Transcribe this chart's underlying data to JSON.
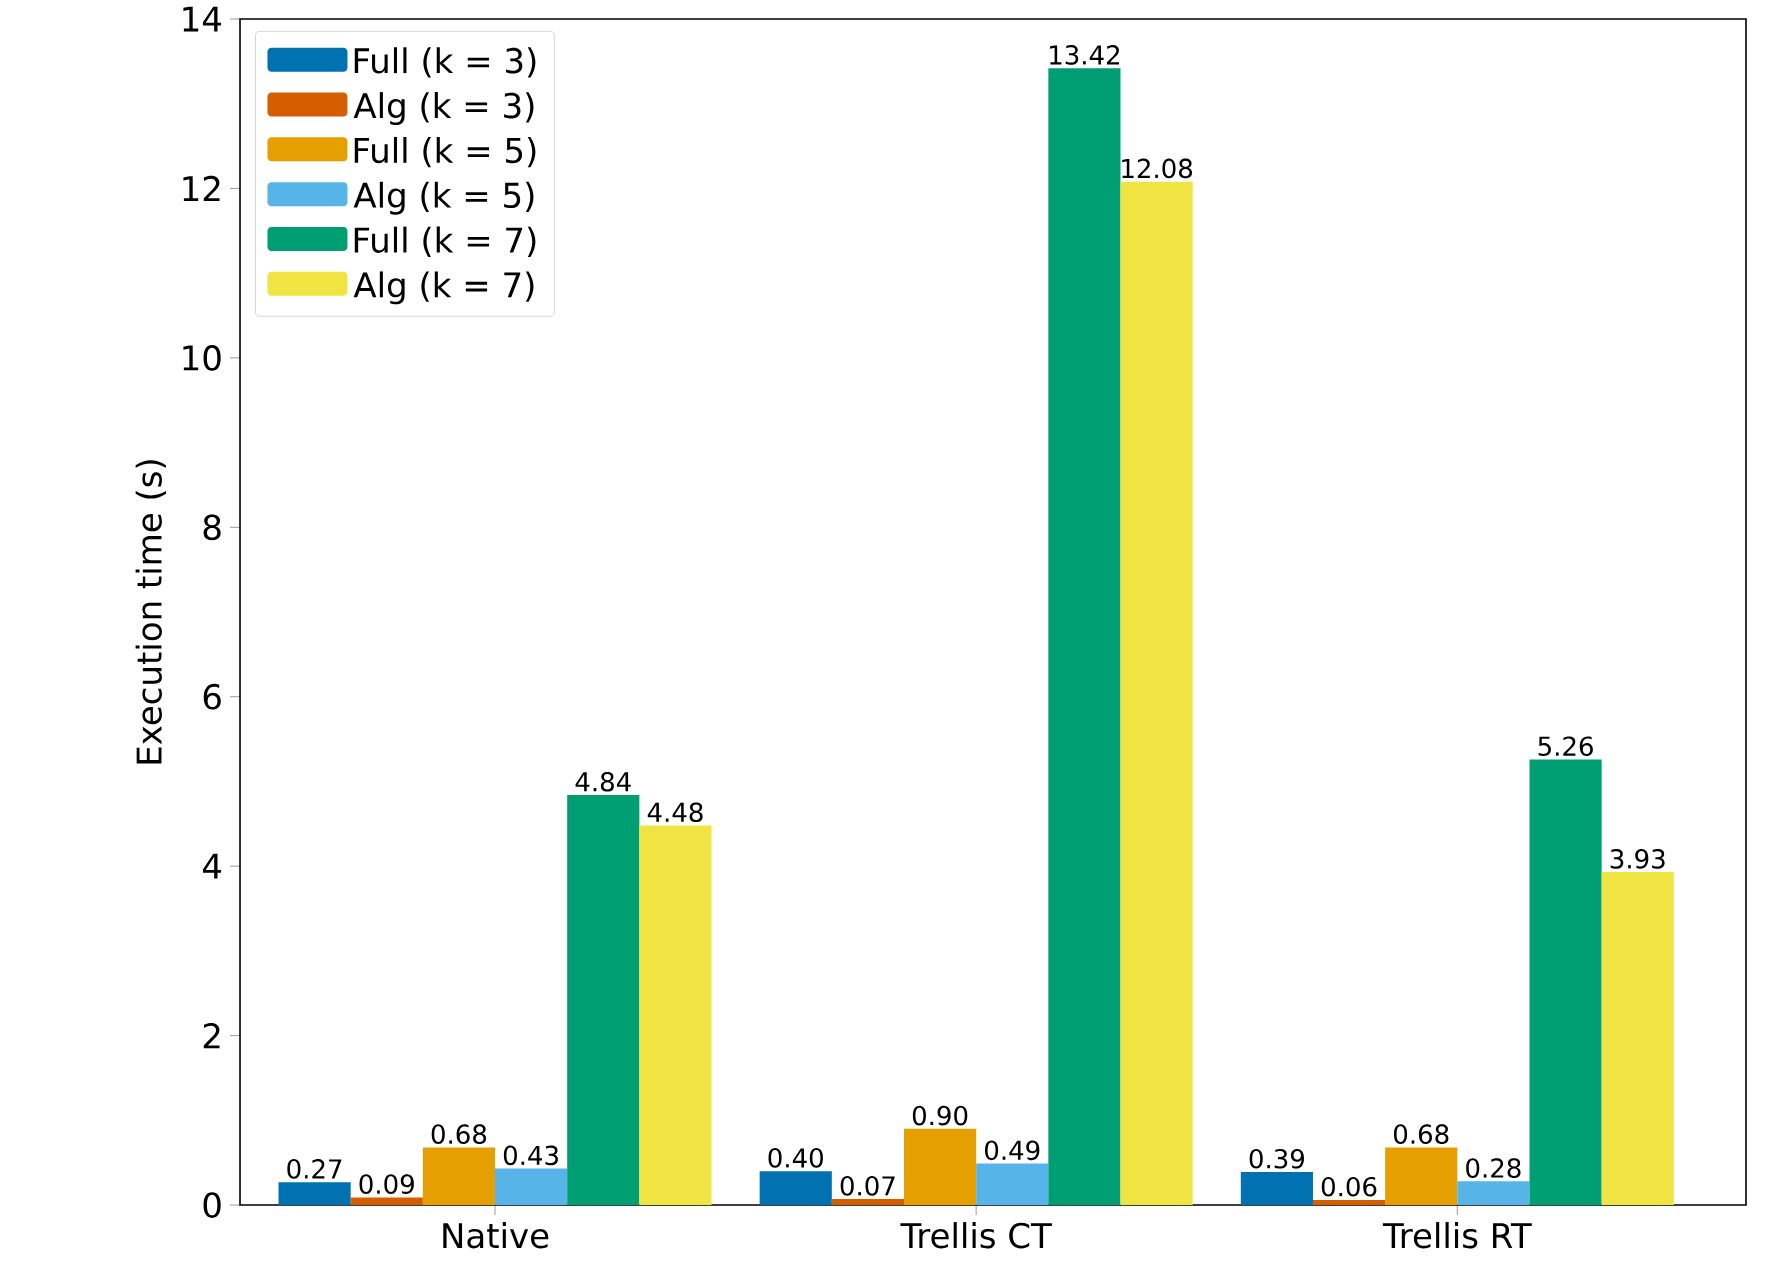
{
  "chart_data": {
    "type": "bar",
    "ylabel": "Execution time (s)",
    "categories": [
      "Native",
      "Trellis CT",
      "Trellis RT"
    ],
    "ylim": [
      0,
      14
    ],
    "yticks": [
      0,
      2,
      4,
      6,
      8,
      10,
      12,
      14
    ],
    "legend": "top left",
    "grid": false,
    "series": [
      {
        "name": "Full (k = 3)",
        "color": "#0072b2",
        "values": [
          0.27,
          0.4,
          0.39
        ],
        "value_labels": [
          "0.27",
          "0.40",
          "0.39"
        ]
      },
      {
        "name": "Alg (k = 3)",
        "color": "#d55e00",
        "values": [
          0.09,
          0.07,
          0.06
        ],
        "value_labels": [
          "0.09",
          "0.07",
          "0.06"
        ]
      },
      {
        "name": "Full (k = 5)",
        "color": "#e69f00",
        "values": [
          0.68,
          0.9,
          0.68
        ],
        "value_labels": [
          "0.68",
          "0.90",
          "0.68"
        ]
      },
      {
        "name": "Alg (k = 5)",
        "color": "#56b4e9",
        "values": [
          0.43,
          0.49,
          0.28
        ],
        "value_labels": [
          "0.43",
          "0.49",
          "0.28"
        ]
      },
      {
        "name": "Full (k = 7)",
        "color": "#009e73",
        "values": [
          4.84,
          13.42,
          5.26
        ],
        "value_labels": [
          "4.84",
          "13.42",
          "5.26"
        ]
      },
      {
        "name": "Alg (k = 7)",
        "color": "#f0e442",
        "values": [
          4.48,
          12.08,
          3.93
        ],
        "value_labels": [
          "4.48",
          "12.08",
          "3.93"
        ]
      }
    ]
  }
}
